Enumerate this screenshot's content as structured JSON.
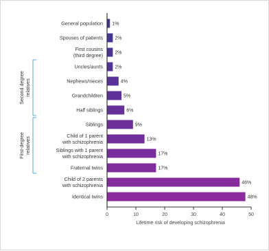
{
  "chart_data": {
    "type": "bar",
    "orientation": "horizontal",
    "categories": [
      "General population",
      "Spouses of patients",
      "First cousins\n(third degree)",
      "Uncles/aunts",
      "Nephews/nieces",
      "Grandchildren",
      "Half siblings",
      "Siblings",
      "Child of 1 parent\nwith schizophrenia",
      "Siblings with 1 parent\nwith schizophrenia",
      "Fraternal twins",
      "Child of 2 parents\nwith schizophrenia",
      "Identical twins"
    ],
    "values": [
      1,
      2,
      2,
      2,
      4,
      5,
      6,
      9,
      13,
      17,
      17,
      46,
      48
    ],
    "value_labels": [
      "1%",
      "2%",
      "2%",
      "2%",
      "4%",
      "5%",
      "6%",
      "9%",
      "13%",
      "17%",
      "17%",
      "46%",
      "48%"
    ],
    "xlabel": "Lifetime risk of developing schizophrenia",
    "xlim": [
      0,
      50
    ],
    "xticks": [
      0,
      10,
      20,
      30,
      40,
      50
    ],
    "grid": false,
    "groups": [
      {
        "label": "Second degree\nrelatives",
        "from": "Uncles/aunts",
        "to": "Half siblings"
      },
      {
        "label": "First-degree\nrelatives",
        "from": "Siblings",
        "to": "Fraternal twins"
      }
    ],
    "colors": {
      "bar_top": "#3f3597",
      "bar_bottom": "#8c2a9e",
      "axis": "#333333",
      "bracket": "#5aa6cf"
    }
  }
}
